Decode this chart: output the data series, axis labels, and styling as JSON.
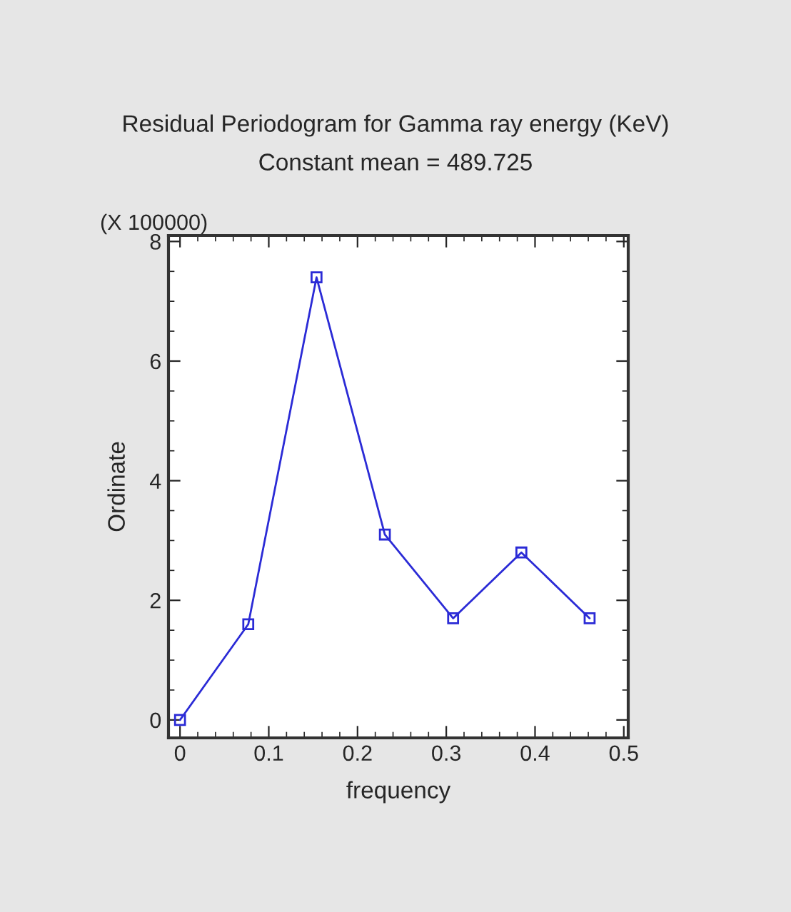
{
  "chart_data": {
    "type": "line",
    "title": "Residual Periodogram for Gamma ray energy (KeV)",
    "subtitle": "Constant mean = 489.725",
    "xlabel": "frequency",
    "ylabel": "Ordinate",
    "annotations": [
      "(X 100000)"
    ],
    "x": [
      0,
      0.0769,
      0.1538,
      0.2308,
      0.3077,
      0.3846,
      0.4615
    ],
    "series": [
      {
        "color": "#2b2bd6",
        "values": [
          0,
          1.6,
          7.4,
          3.1,
          1.7,
          2.8,
          1.7
        ]
      }
    ],
    "xlim": [
      -0.013,
      0.505
    ],
    "ylim": [
      -0.3,
      8.1
    ],
    "xticks": [
      0,
      0.1,
      0.2,
      0.3,
      0.4,
      0.5
    ],
    "yticks": [
      0,
      2,
      4,
      6,
      8
    ],
    "marker": "square",
    "line_style": "solid",
    "grid": false,
    "legend": false
  }
}
